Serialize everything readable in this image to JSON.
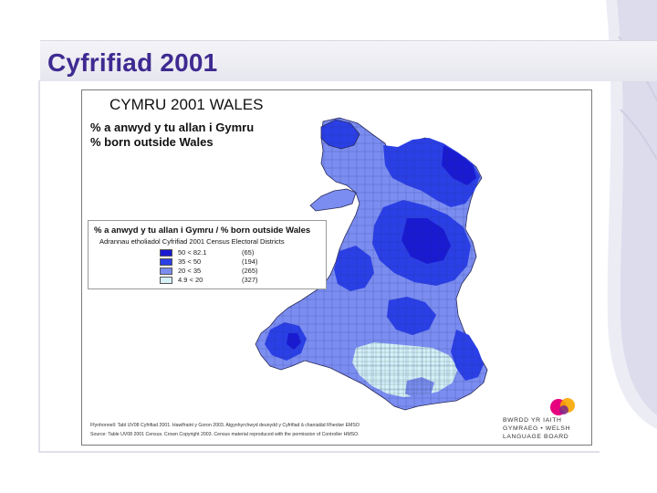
{
  "slide": {
    "title": "Cyfrifiad 2001"
  },
  "map": {
    "title": "CYMRU 2001 WALES",
    "subtitle_welsh": "% a anwyd y tu allan i Gymru",
    "subtitle_english": "% born outside Wales",
    "legend": {
      "title": "% a anwyd y tu allan i Gymru / % born outside Wales",
      "subtitle": "Adrannau etholiadol Cyfrifiad 2001 Census Electoral Districts",
      "classes": [
        {
          "range": "50   < 82.1",
          "count": "(65)",
          "color": "#1a1ad2"
        },
        {
          "range": "35   < 50",
          "count": "(194)",
          "color": "#2b3fe6"
        },
        {
          "range": "20   < 35",
          "count": "(265)",
          "color": "#7b8df0"
        },
        {
          "range": "4.9 < 20",
          "count": "(327)",
          "color": "#d6f1f9"
        }
      ]
    },
    "credit_welsh": "Ffynhonnell: Tabl UV08 Cyfrifiad 2001. Hawlfraint y Goron 2003. Atgynhyrchwyd deunydd y Cyfrifiad â chaniatâd Rheolwr EMSO",
    "credit_english": "Source: Table UV08 2001 Census. Crown Copyright 2003. Census material reproduced with the permission of Controller HMSO.",
    "logo": {
      "line1": "BWRDD YR IAITH",
      "line2": "GYMRAEG • WELSH",
      "line3": "LANGUAGE BOARD",
      "colors": [
        "#e6007e",
        "#f7a600",
        "#7d2a8c"
      ]
    }
  }
}
